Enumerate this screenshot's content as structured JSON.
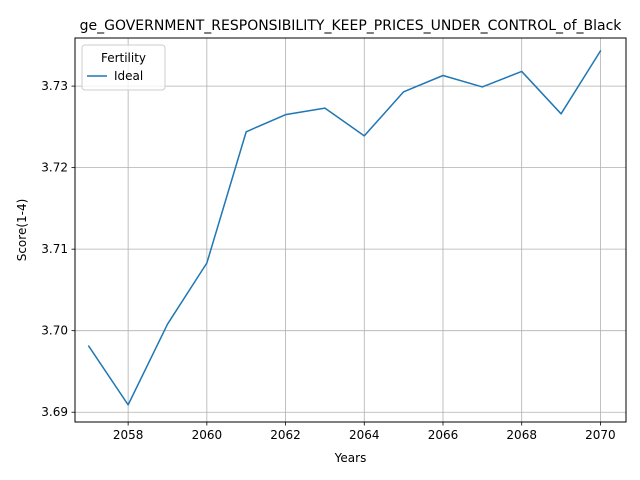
{
  "chart_data": {
    "type": "line",
    "title": "ge_GOVERNMENT_RESPONSIBILITY_KEEP_PRICES_UNDER_CONTROL_of_Black",
    "xlabel": "Years",
    "ylabel": "Score(1-4)",
    "xlim": [
      2056.65,
      2070.65
    ],
    "ylim": [
      3.6888,
      3.7359
    ],
    "grid": true,
    "legend_title": "Fertility",
    "legend_position": "top-left",
    "x_ticks": [
      2058,
      2060,
      2062,
      2064,
      2066,
      2068,
      2070
    ],
    "x_tick_labels": [
      "2058",
      "2060",
      "2062",
      "2064",
      "2066",
      "2068",
      "2070"
    ],
    "y_ticks": [
      3.69,
      3.7,
      3.71,
      3.72,
      3.73
    ],
    "y_tick_labels": [
      "3.69",
      "3.70",
      "3.71",
      "3.72",
      "3.73"
    ],
    "series": [
      {
        "name": "Ideal",
        "color": "#1f77b4",
        "x": [
          2057,
          2058,
          2059,
          2060,
          2061,
          2062,
          2063,
          2064,
          2065,
          2066,
          2067,
          2068,
          2069,
          2070
        ],
        "values": [
          3.6981,
          3.6909,
          3.7008,
          3.7083,
          3.7244,
          3.7265,
          3.7273,
          3.7239,
          3.7293,
          3.7313,
          3.7299,
          3.7318,
          3.7266,
          3.7343
        ]
      }
    ]
  }
}
